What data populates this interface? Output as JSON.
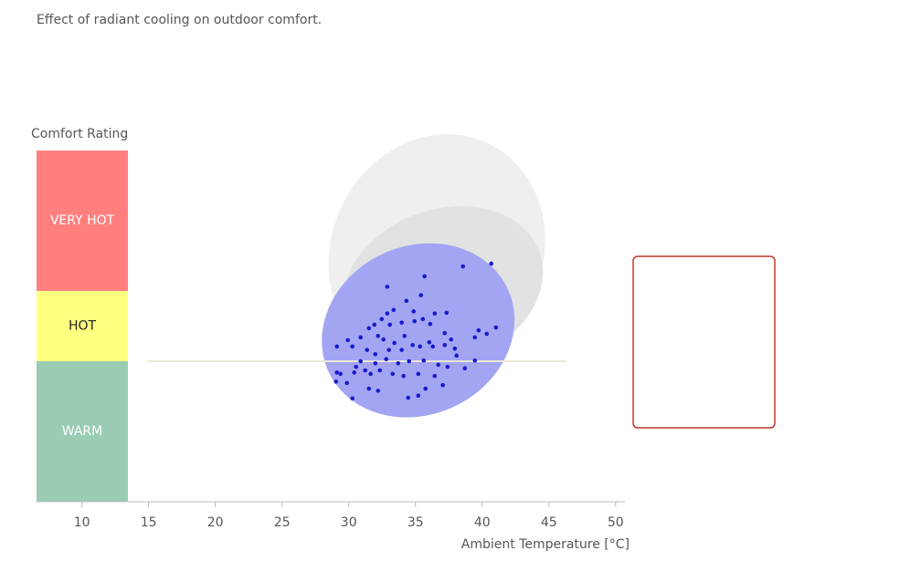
{
  "chart_data": {
    "type": "scatter",
    "title": "Effect of radiant cooling on outdoor comfort.",
    "x_label": "Ambient Temperature [°C]",
    "band_title": "Comfort Rating",
    "xlim": [
      6.6,
      50.7
    ],
    "xticks": [
      10,
      15,
      20,
      25,
      30,
      35,
      40,
      45,
      50
    ],
    "ylim": [
      0,
      5
    ],
    "bands": [
      {
        "label": "WARM",
        "from": 0,
        "to": 2,
        "color": "#99ccb3",
        "text_color": "#ffffff"
      },
      {
        "label": "HOT",
        "from": 2,
        "to": 3,
        "color": "#ffff80",
        "text_color": "#222222"
      },
      {
        "label": "VERY HOT",
        "from": 3,
        "to": 5,
        "color": "#ff7f7f",
        "text_color": "#ffffff"
      }
    ],
    "reference_line": {
      "y": 2,
      "x": [
        14.9,
        46.3
      ],
      "color": "#e8e8d8"
    },
    "ellipses": [
      {
        "cx": 36.6,
        "cy": 3.56,
        "rx": 9.0,
        "ry": 1.5,
        "angle": -65,
        "color": "#efefef"
      },
      {
        "cx": 37.05,
        "cy": 3.06,
        "rx": 7.7,
        "ry": 1.1,
        "angle": -20,
        "color": "#e2e2e2"
      },
      {
        "cx": 35.2,
        "cy": 2.44,
        "rx": 7.4,
        "ry": 1.2,
        "angle": -25,
        "color": "#a3a5f3"
      }
    ],
    "series": [
      {
        "color": "#1a1acc",
        "x": [
          40.68,
          38.56,
          35.68,
          32.88,
          35.41,
          34.32,
          33.36,
          32.88,
          34.86,
          35.55,
          36.44,
          37.33,
          32.47,
          31.92,
          31.51,
          33.08,
          33.97,
          34.93,
          36.1,
          37.19,
          39.73,
          41.03,
          39.45,
          40.34,
          37.67,
          37.95,
          36.03,
          35.34,
          34.18,
          33.42,
          32.6,
          32.19,
          30.89,
          29.93,
          29.11,
          30.27,
          31.37,
          31.99,
          33.01,
          33.97,
          34.79,
          36.3,
          37.19,
          38.08,
          39.45,
          38.7,
          37.4,
          36.71,
          35.62,
          34.52,
          33.7,
          32.81,
          31.99,
          30.89,
          30.55,
          29.11,
          29.38,
          30.41,
          31.23,
          31.64,
          32.33,
          33.29,
          34.11,
          35.21,
          36.44,
          29.04,
          29.86,
          31.51,
          32.19,
          35.75,
          37.05,
          35.21,
          34.45,
          30.27
        ],
        "values": [
          3.39,
          3.35,
          3.21,
          3.06,
          2.94,
          2.86,
          2.73,
          2.68,
          2.71,
          2.6,
          2.68,
          2.69,
          2.6,
          2.52,
          2.47,
          2.52,
          2.55,
          2.57,
          2.53,
          2.4,
          2.44,
          2.48,
          2.34,
          2.39,
          2.31,
          2.18,
          2.27,
          2.21,
          2.36,
          2.26,
          2.31,
          2.36,
          2.34,
          2.3,
          2.21,
          2.21,
          2.16,
          2.1,
          2.16,
          2.16,
          2.23,
          2.21,
          2.23,
          2.08,
          2.01,
          1.9,
          1.92,
          1.95,
          2.01,
          2.0,
          1.97,
          2.03,
          1.97,
          2.0,
          1.92,
          1.84,
          1.82,
          1.84,
          1.87,
          1.82,
          1.87,
          1.82,
          1.79,
          1.82,
          1.79,
          1.71,
          1.69,
          1.61,
          1.58,
          1.61,
          1.66,
          1.51,
          1.48,
          1.47
        ]
      }
    ]
  }
}
